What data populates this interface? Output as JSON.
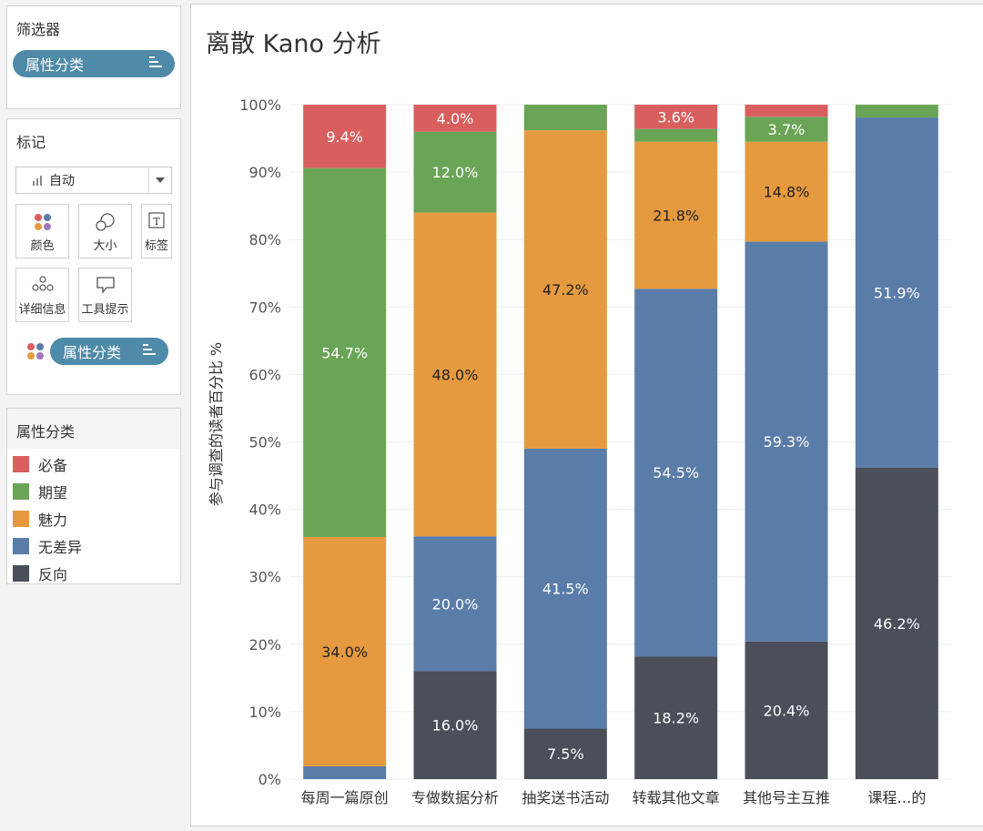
{
  "filters": {
    "title": "筛选器",
    "pill": "属性分类"
  },
  "marks": {
    "title": "标记",
    "mark_type": "自动",
    "buttons": {
      "color": "颜色",
      "size": "大小",
      "label": "标签",
      "detail": "详细信息",
      "tooltip": "工具提示"
    },
    "pill": "属性分类"
  },
  "legend": {
    "title": "属性分类",
    "items": [
      {
        "label": "必备",
        "color": "#d95f5f"
      },
      {
        "label": "期望",
        "color": "#6aa456"
      },
      {
        "label": "魅力",
        "color": "#e69a3f"
      },
      {
        "label": "无差异",
        "color": "#5a7ca8"
      },
      {
        "label": "反向",
        "color": "#4a4f5a"
      }
    ]
  },
  "chart_data": {
    "type": "bar",
    "stacked": true,
    "title": "离散 Kano 分析",
    "ylabel": "参与调查的读者百分比 %",
    "xlabel": "",
    "ylim": [
      0,
      100
    ],
    "y_ticks": [
      "0%",
      "10%",
      "20%",
      "30%",
      "40%",
      "50%",
      "60%",
      "70%",
      "80%",
      "90%",
      "100%"
    ],
    "categories": [
      "每周一篇原创",
      "专做数据分析",
      "抽奖送书活动",
      "转载其他文章",
      "其他号主互推",
      "课程…的"
    ],
    "series": [
      {
        "name": "反向",
        "color": "#4a4f5a",
        "values": [
          0,
          16.0,
          7.5,
          18.2,
          20.4,
          46.2
        ],
        "labels": [
          "",
          "16.0%",
          "7.5%",
          "18.2%",
          "20.4%",
          "46.2%"
        ]
      },
      {
        "name": "无差异",
        "color": "#5a7ca8",
        "values": [
          1.9,
          20.0,
          41.5,
          54.5,
          59.3,
          51.9
        ],
        "labels": [
          "",
          "20.0%",
          "41.5%",
          "54.5%",
          "59.3%",
          "51.9%"
        ]
      },
      {
        "name": "魅力",
        "color": "#e69a3f",
        "values": [
          34.0,
          48.0,
          47.2,
          21.8,
          14.8,
          0
        ],
        "labels": [
          "34.0%",
          "48.0%",
          "47.2%",
          "21.8%",
          "14.8%",
          ""
        ]
      },
      {
        "name": "期望",
        "color": "#6aa456",
        "values": [
          54.7,
          12.0,
          3.8,
          1.9,
          3.7,
          1.9
        ],
        "labels": [
          "54.7%",
          "12.0%",
          "",
          "",
          "3.7%",
          ""
        ]
      },
      {
        "name": "必备",
        "color": "#d95f5f",
        "values": [
          9.4,
          4.0,
          0,
          3.6,
          1.8,
          0
        ],
        "labels": [
          "9.4%",
          "4.0%",
          "",
          "3.6%",
          "",
          ""
        ]
      }
    ],
    "grid": true,
    "legend": "left"
  }
}
